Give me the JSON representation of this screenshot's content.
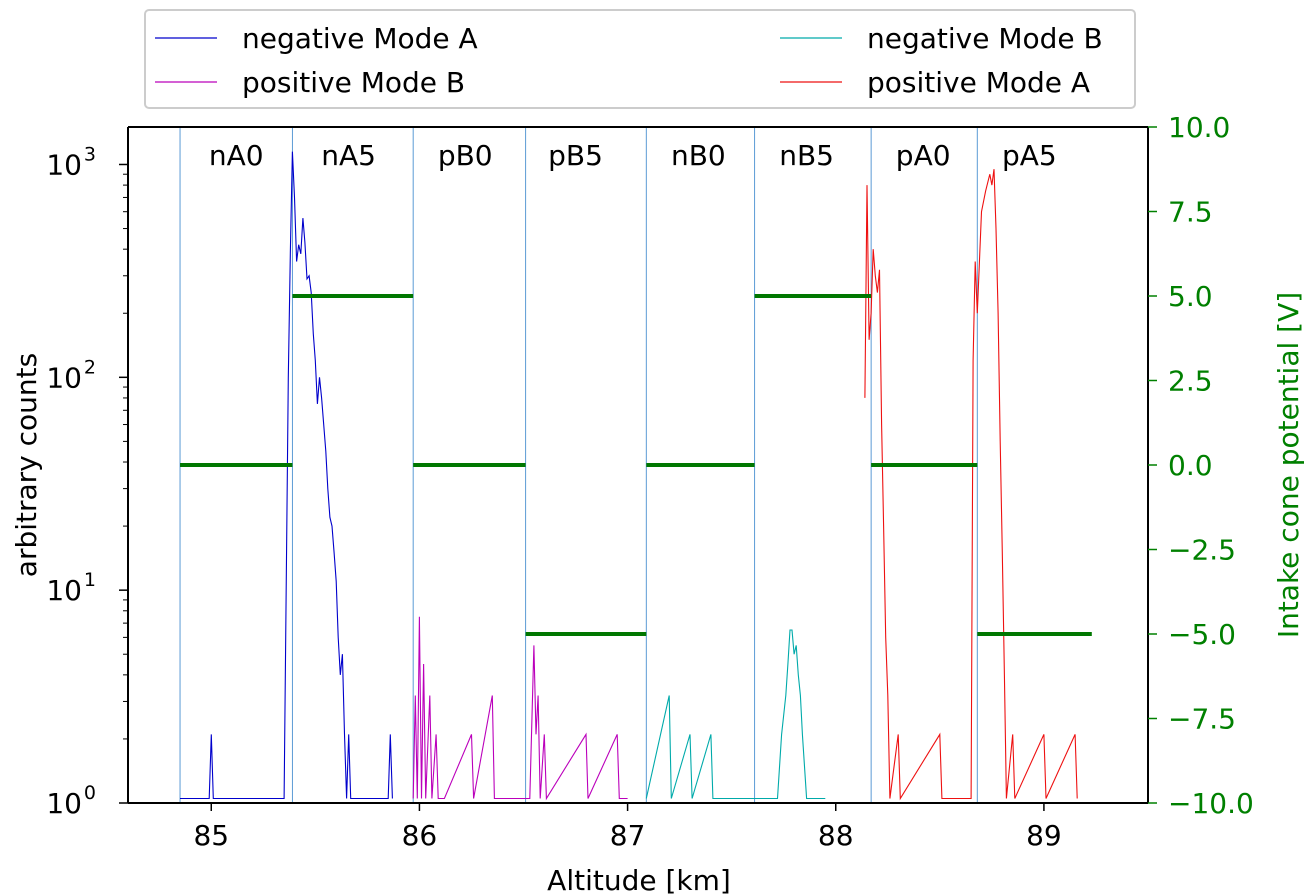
{
  "chart_data": {
    "type": "line",
    "xlabel": "Altitude [km]",
    "ylabel": "arbitrary counts",
    "y2label": "Intake cone potential [V]",
    "xlim": [
      84.6,
      89.5
    ],
    "ylim": [
      1,
      1500
    ],
    "y2lim": [
      -10,
      10
    ],
    "yscale": "log",
    "x_ticks": [
      85,
      86,
      87,
      88,
      89
    ],
    "x_tick_labels": [
      "85",
      "86",
      "87",
      "88",
      "89"
    ],
    "y_ticks": [
      1,
      10,
      100,
      1000
    ],
    "y_tick_labels": [
      "10",
      "10",
      "10",
      "10"
    ],
    "y_tick_exponents": [
      "0",
      "1",
      "2",
      "3"
    ],
    "y2_ticks": [
      10,
      7.5,
      5,
      2.5,
      0,
      -2.5,
      -5,
      -7.5,
      -10
    ],
    "y2_tick_labels": [
      "10.0",
      "7.5",
      "5.0",
      "2.5",
      "0.0",
      "−2.5",
      "−5.0",
      "−7.5",
      "−10.0"
    ],
    "colors": {
      "negative_mode_a": "#0000cc",
      "positive_mode_b": "#bb00bb",
      "negative_mode_b": "#00aaaa",
      "positive_mode_a": "#ee1111",
      "potential": "#007700",
      "segment_line": "#5b9bd5",
      "axis_right": "#008000"
    },
    "legend": {
      "placement": "top, outside plot",
      "entries": [
        {
          "label": "negative Mode A",
          "color": "#0000cc"
        },
        {
          "label": "negative Mode B",
          "color": "#00aaaa"
        },
        {
          "label": "positive Mode B",
          "color": "#bb00bb"
        },
        {
          "label": "positive Mode A",
          "color": "#ee1111"
        }
      ]
    },
    "segment_boundaries": [
      84.85,
      85.39,
      85.97,
      86.51,
      87.09,
      87.61,
      88.17,
      88.68
    ],
    "segment_labels": [
      {
        "label": "nA0",
        "x": 85.12
      },
      {
        "label": "nA5",
        "x": 85.66
      },
      {
        "label": "pB0",
        "x": 86.22
      },
      {
        "label": "pB5",
        "x": 86.75
      },
      {
        "label": "nB0",
        "x": 87.34
      },
      {
        "label": "nB5",
        "x": 87.86
      },
      {
        "label": "pA0",
        "x": 88.42
      },
      {
        "label": "pA5",
        "x": 88.93
      }
    ],
    "potential_segments": [
      {
        "x0": 84.85,
        "x1": 85.39,
        "v": 0
      },
      {
        "x0": 85.39,
        "x1": 85.97,
        "v": 5
      },
      {
        "x0": 85.97,
        "x1": 86.51,
        "v": 0
      },
      {
        "x0": 86.51,
        "x1": 87.09,
        "v": -5
      },
      {
        "x0": 87.09,
        "x1": 87.61,
        "v": 0
      },
      {
        "x0": 87.61,
        "x1": 88.17,
        "v": 5
      },
      {
        "x0": 88.17,
        "x1": 88.68,
        "v": 0
      },
      {
        "x0": 88.68,
        "x1": 89.23,
        "v": -5
      }
    ],
    "series": [
      {
        "name": "negative Mode A",
        "color": "#0000cc",
        "points": [
          [
            84.85,
            1.05
          ],
          [
            84.99,
            1.05
          ],
          [
            85.0,
            2.1
          ],
          [
            85.01,
            1.05
          ],
          [
            85.05,
            1.05
          ],
          [
            85.1,
            1.05
          ],
          [
            85.2,
            1.05
          ],
          [
            85.25,
            1.05
          ],
          [
            85.3,
            1.05
          ],
          [
            85.35,
            1.05
          ],
          [
            85.37,
            100
          ],
          [
            85.38,
            400
          ],
          [
            85.39,
            1150
          ],
          [
            85.4,
            700
          ],
          [
            85.41,
            350
          ],
          [
            85.42,
            420
          ],
          [
            85.43,
            380
          ],
          [
            85.44,
            560
          ],
          [
            85.45,
            430
          ],
          [
            85.46,
            290
          ],
          [
            85.47,
            300
          ],
          [
            85.48,
            250
          ],
          [
            85.49,
            160
          ],
          [
            85.5,
            120
          ],
          [
            85.51,
            75
          ],
          [
            85.52,
            100
          ],
          [
            85.53,
            80
          ],
          [
            85.54,
            60
          ],
          [
            85.55,
            45
          ],
          [
            85.56,
            30
          ],
          [
            85.57,
            22
          ],
          [
            85.58,
            20
          ],
          [
            85.59,
            15
          ],
          [
            85.6,
            11
          ],
          [
            85.61,
            6
          ],
          [
            85.62,
            4
          ],
          [
            85.63,
            5
          ],
          [
            85.64,
            2.1
          ],
          [
            85.65,
            1.05
          ],
          [
            85.66,
            2.1
          ],
          [
            85.67,
            1.05
          ],
          [
            85.7,
            1.05
          ],
          [
            85.75,
            1.05
          ],
          [
            85.85,
            1.05
          ],
          [
            85.86,
            2.1
          ],
          [
            85.87,
            1.05
          ]
        ]
      },
      {
        "name": "positive Mode B",
        "color": "#bb00bb",
        "points": [
          [
            85.97,
            1.05
          ],
          [
            85.98,
            3.2
          ],
          [
            85.99,
            1.05
          ],
          [
            86.0,
            7.5
          ],
          [
            86.01,
            1.05
          ],
          [
            86.02,
            4.5
          ],
          [
            86.03,
            1.05
          ],
          [
            86.05,
            3.2
          ],
          [
            86.06,
            1.05
          ],
          [
            86.08,
            2.1
          ],
          [
            86.09,
            1.05
          ],
          [
            86.12,
            1.05
          ],
          [
            86.25,
            2.1
          ],
          [
            86.26,
            1.05
          ],
          [
            86.35,
            3.2
          ],
          [
            86.36,
            1.05
          ],
          [
            86.5,
            1.05
          ],
          [
            86.53,
            1.05
          ],
          [
            86.55,
            5.5
          ],
          [
            86.56,
            2.1
          ],
          [
            86.57,
            3.2
          ],
          [
            86.58,
            1.05
          ],
          [
            86.6,
            2.1
          ],
          [
            86.61,
            1.05
          ],
          [
            86.8,
            2.1
          ],
          [
            86.81,
            1.05
          ],
          [
            86.95,
            2.1
          ],
          [
            86.96,
            1.05
          ],
          [
            87.0,
            1.05
          ]
        ]
      },
      {
        "name": "negative Mode B",
        "color": "#00aaaa",
        "points": [
          [
            87.09,
            1.05
          ],
          [
            87.2,
            3.2
          ],
          [
            87.21,
            1.05
          ],
          [
            87.3,
            2.1
          ],
          [
            87.31,
            1.05
          ],
          [
            87.4,
            2.1
          ],
          [
            87.41,
            1.05
          ],
          [
            87.6,
            1.05
          ],
          [
            87.72,
            1.05
          ],
          [
            87.74,
            2.1
          ],
          [
            87.76,
            3.2
          ],
          [
            87.77,
            4.5
          ],
          [
            87.78,
            6.5
          ],
          [
            87.79,
            6.5
          ],
          [
            87.8,
            5.0
          ],
          [
            87.81,
            5.5
          ],
          [
            87.82,
            4.0
          ],
          [
            87.83,
            3.2
          ],
          [
            87.84,
            2.1
          ],
          [
            87.86,
            1.05
          ],
          [
            87.95,
            1.05
          ]
        ]
      },
      {
        "name": "positive Mode A",
        "color": "#ee1111",
        "points": [
          [
            88.14,
            80
          ],
          [
            88.15,
            800
          ],
          [
            88.16,
            150
          ],
          [
            88.17,
            200
          ],
          [
            88.18,
            400
          ],
          [
            88.19,
            300
          ],
          [
            88.2,
            250
          ],
          [
            88.21,
            320
          ],
          [
            88.22,
            60
          ],
          [
            88.23,
            20
          ],
          [
            88.24,
            6
          ],
          [
            88.25,
            3.2
          ],
          [
            88.26,
            1.05
          ],
          [
            88.3,
            2.1
          ],
          [
            88.31,
            1.05
          ],
          [
            88.5,
            2.1
          ],
          [
            88.51,
            1.05
          ],
          [
            88.65,
            1.05
          ],
          [
            88.66,
            120
          ],
          [
            88.67,
            350
          ],
          [
            88.68,
            200
          ],
          [
            88.7,
            600
          ],
          [
            88.72,
            750
          ],
          [
            88.74,
            900
          ],
          [
            88.75,
            800
          ],
          [
            88.76,
            950
          ],
          [
            88.77,
            500
          ],
          [
            88.78,
            200
          ],
          [
            88.79,
            50
          ],
          [
            88.8,
            15
          ],
          [
            88.81,
            4
          ],
          [
            88.82,
            1.05
          ],
          [
            88.85,
            2.1
          ],
          [
            88.86,
            1.05
          ],
          [
            89.0,
            2.1
          ],
          [
            89.01,
            1.05
          ],
          [
            89.15,
            2.1
          ],
          [
            89.16,
            1.05
          ]
        ]
      }
    ]
  }
}
